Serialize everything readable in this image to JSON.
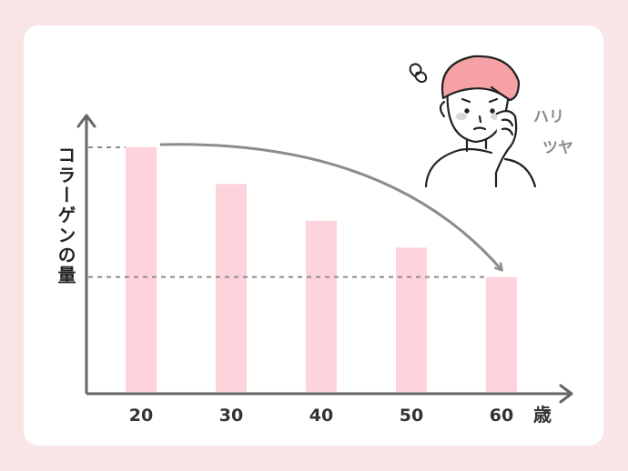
{
  "chart_data": {
    "type": "bar",
    "categories": [
      "20",
      "30",
      "40",
      "50",
      "60"
    ],
    "values": [
      100,
      85,
      70,
      59,
      47
    ],
    "x_unit_label": "歳",
    "ylabel": "コラーゲンの量",
    "ylim": [
      0,
      100
    ],
    "grid": false,
    "annotations": [
      "ハリ",
      "ツヤ"
    ],
    "colors": {
      "bar": "#ffd3dc",
      "axis": "#666666",
      "dash": "#8c8c8c",
      "arrow": "#8c8c8c"
    }
  },
  "illustration": {
    "icon": "worried-woman-hand-on-cheek-icon",
    "swirl_icon": "worry-swirl-icon"
  }
}
